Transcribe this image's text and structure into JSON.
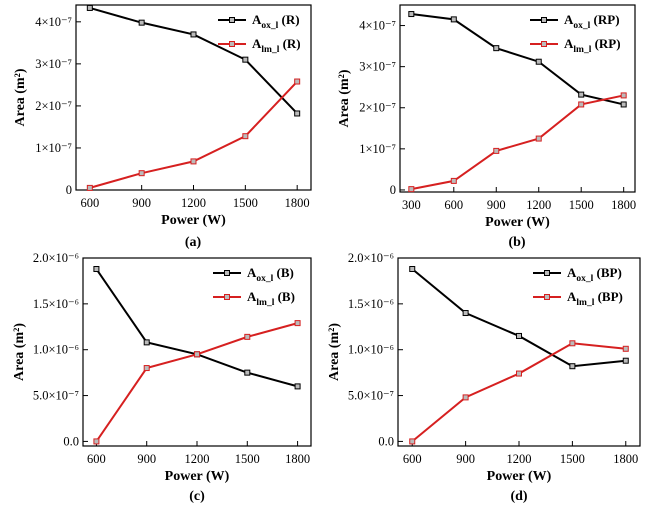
{
  "chart_data": [
    {
      "type": "line",
      "panel_label": "(a)",
      "xlabel": "Power (W)",
      "ylabel": "Area (m²)",
      "x": [
        600,
        900,
        1200,
        1500,
        1800
      ],
      "xlim": [
        520,
        1880
      ],
      "ylim": [
        0,
        4.4e-07
      ],
      "y_ticks": [
        0,
        1e-07,
        2e-07,
        3e-07,
        4e-07
      ],
      "y_tick_labels": [
        "0",
        "1×10⁻⁷",
        "2×10⁻⁷",
        "3×10⁻⁷",
        "4×10⁻⁷"
      ],
      "x_tick_labels": [
        "600",
        "900",
        "1200",
        "1500",
        "1800"
      ],
      "legend_position": "top-right",
      "series": [
        {
          "name": "A_ox_l (R)",
          "base": "A",
          "sub": "ox_l",
          "tag": "(R)",
          "color": "#000000",
          "values": [
            4.33e-07,
            3.98e-07,
            3.7e-07,
            3.1e-07,
            1.82e-07
          ]
        },
        {
          "name": "A_lm_l (R)",
          "base": "A",
          "sub": "lm_l",
          "tag": "(R)",
          "color": "#d62020",
          "values": [
            5e-09,
            4e-08,
            6.8e-08,
            1.28e-07,
            2.58e-07
          ]
        }
      ]
    },
    {
      "type": "line",
      "panel_label": "(b)",
      "xlabel": "Power (W)",
      "ylabel": "Area (m²)",
      "x": [
        300,
        600,
        900,
        1200,
        1500,
        1800
      ],
      "xlim": [
        220,
        1880
      ],
      "ylim": [
        -5e-09,
        4.5e-07
      ],
      "y_ticks": [
        0,
        1e-07,
        2e-07,
        3e-07,
        4e-07
      ],
      "y_tick_labels": [
        "0",
        "1×10⁻⁷",
        "2×10⁻⁷",
        "3×10⁻⁷",
        "4×10⁻⁷"
      ],
      "x_tick_labels": [
        "300",
        "600",
        "900",
        "1200",
        "1500",
        "1800"
      ],
      "legend_position": "top-right",
      "series": [
        {
          "name": "A_ox_l (RP)",
          "base": "A",
          "sub": "ox_l",
          "tag": "(RP)",
          "color": "#000000",
          "values": [
            4.28e-07,
            4.15e-07,
            3.45e-07,
            3.12e-07,
            2.32e-07,
            2.08e-07
          ]
        },
        {
          "name": "A_lm_l (RP)",
          "base": "A",
          "sub": "lm_l",
          "tag": "(RP)",
          "color": "#d62020",
          "values": [
            2e-09,
            2.2e-08,
            9.5e-08,
            1.25e-07,
            2.08e-07,
            2.3e-07
          ]
        }
      ]
    },
    {
      "type": "line",
      "panel_label": "(c)",
      "xlabel": "Power (W)",
      "ylabel": "Area (m²)",
      "x": [
        600,
        900,
        1200,
        1500,
        1800
      ],
      "xlim": [
        520,
        1880
      ],
      "ylim": [
        -5e-08,
        2e-06
      ],
      "y_ticks": [
        0,
        5e-07,
        1e-06,
        1.5e-06,
        2e-06
      ],
      "y_tick_labels": [
        "0.0",
        "5.0×10⁻⁷",
        "1.0×10⁻⁶",
        "1.5×10⁻⁶",
        "2.0×10⁻⁶"
      ],
      "x_tick_labels": [
        "600",
        "900",
        "1200",
        "1500",
        "1800"
      ],
      "legend_position": "top-right",
      "series": [
        {
          "name": "A_ox_l (B)",
          "base": "A",
          "sub": "ox_l",
          "tag": "(B)",
          "color": "#000000",
          "values": [
            1.88e-06,
            1.08e-06,
            9.5e-07,
            7.5e-07,
            6e-07
          ]
        },
        {
          "name": "A_lm_l (B)",
          "base": "A",
          "sub": "lm_l",
          "tag": "(B)",
          "color": "#d62020",
          "values": [
            0.0,
            8e-07,
            9.5e-07,
            1.14e-06,
            1.29e-06
          ]
        }
      ]
    },
    {
      "type": "line",
      "panel_label": "(d)",
      "xlabel": "Power (W)",
      "ylabel": "Area (m²)",
      "x": [
        600,
        900,
        1200,
        1500,
        1800
      ],
      "xlim": [
        520,
        1880
      ],
      "ylim": [
        -5e-08,
        2e-06
      ],
      "y_ticks": [
        0,
        5e-07,
        1e-06,
        1.5e-06,
        2e-06
      ],
      "y_tick_labels": [
        "0.0",
        "5.0×10⁻⁷",
        "1.0×10⁻⁶",
        "1.5×10⁻⁶",
        "2.0×10⁻⁶"
      ],
      "x_tick_labels": [
        "600",
        "900",
        "1200",
        "1500",
        "1800"
      ],
      "legend_position": "top-right",
      "series": [
        {
          "name": "A_ox_l (BP)",
          "base": "A",
          "sub": "ox_l",
          "tag": "(BP)",
          "color": "#000000",
          "values": [
            1.88e-06,
            1.4e-06,
            1.15e-06,
            8.2e-07,
            8.8e-07
          ]
        },
        {
          "name": "A_lm_l (BP)",
          "base": "A",
          "sub": "lm_l",
          "tag": "(BP)",
          "color": "#d62020",
          "values": [
            0.0,
            4.8e-07,
            7.4e-07,
            1.07e-06,
            1.01e-06
          ]
        }
      ]
    }
  ]
}
